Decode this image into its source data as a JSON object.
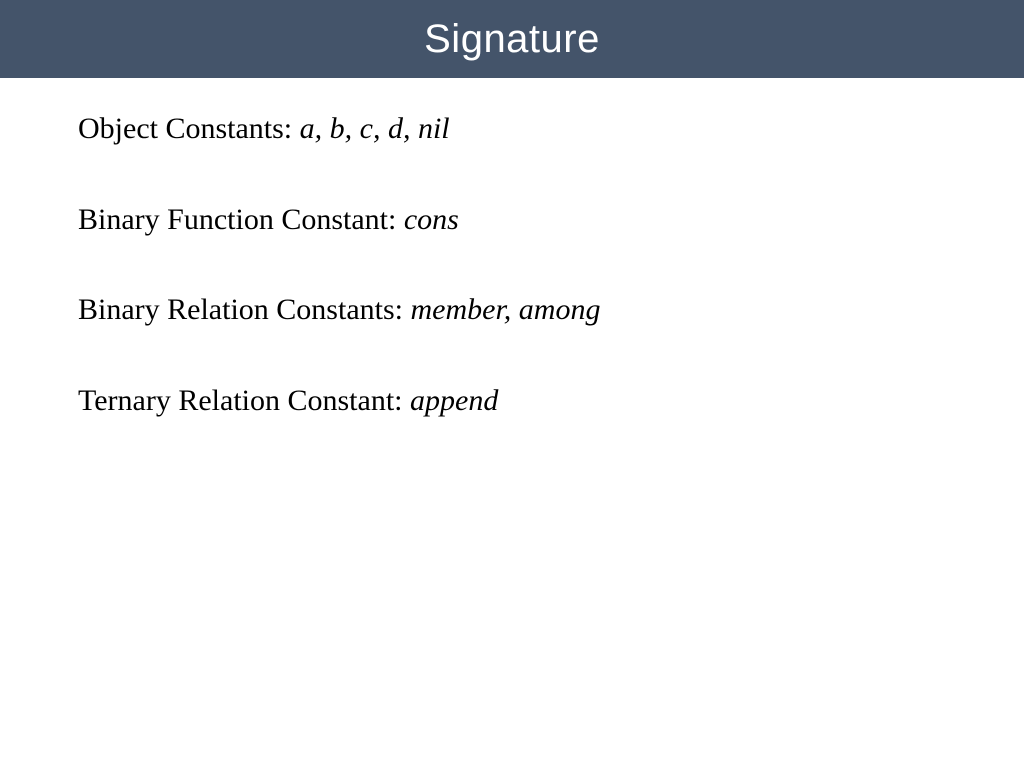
{
  "title": "Signature",
  "lines": [
    {
      "label": "Object Constants: ",
      "value": "a, b, c, d, nil"
    },
    {
      "label": "Binary Function Constant: ",
      "value": "cons"
    },
    {
      "label": "Binary Relation Constants: ",
      "value": "member, among"
    },
    {
      "label": "Ternary Relation Constant: ",
      "value": "append"
    }
  ],
  "colors": {
    "titlebar_bg": "#44546a",
    "title_text": "#ffffff",
    "body_text": "#000000",
    "page_bg": "#ffffff"
  },
  "typography": {
    "title_family": "Arial",
    "title_size_pt": 30,
    "body_family": "Times New Roman",
    "body_size_pt": 22
  }
}
